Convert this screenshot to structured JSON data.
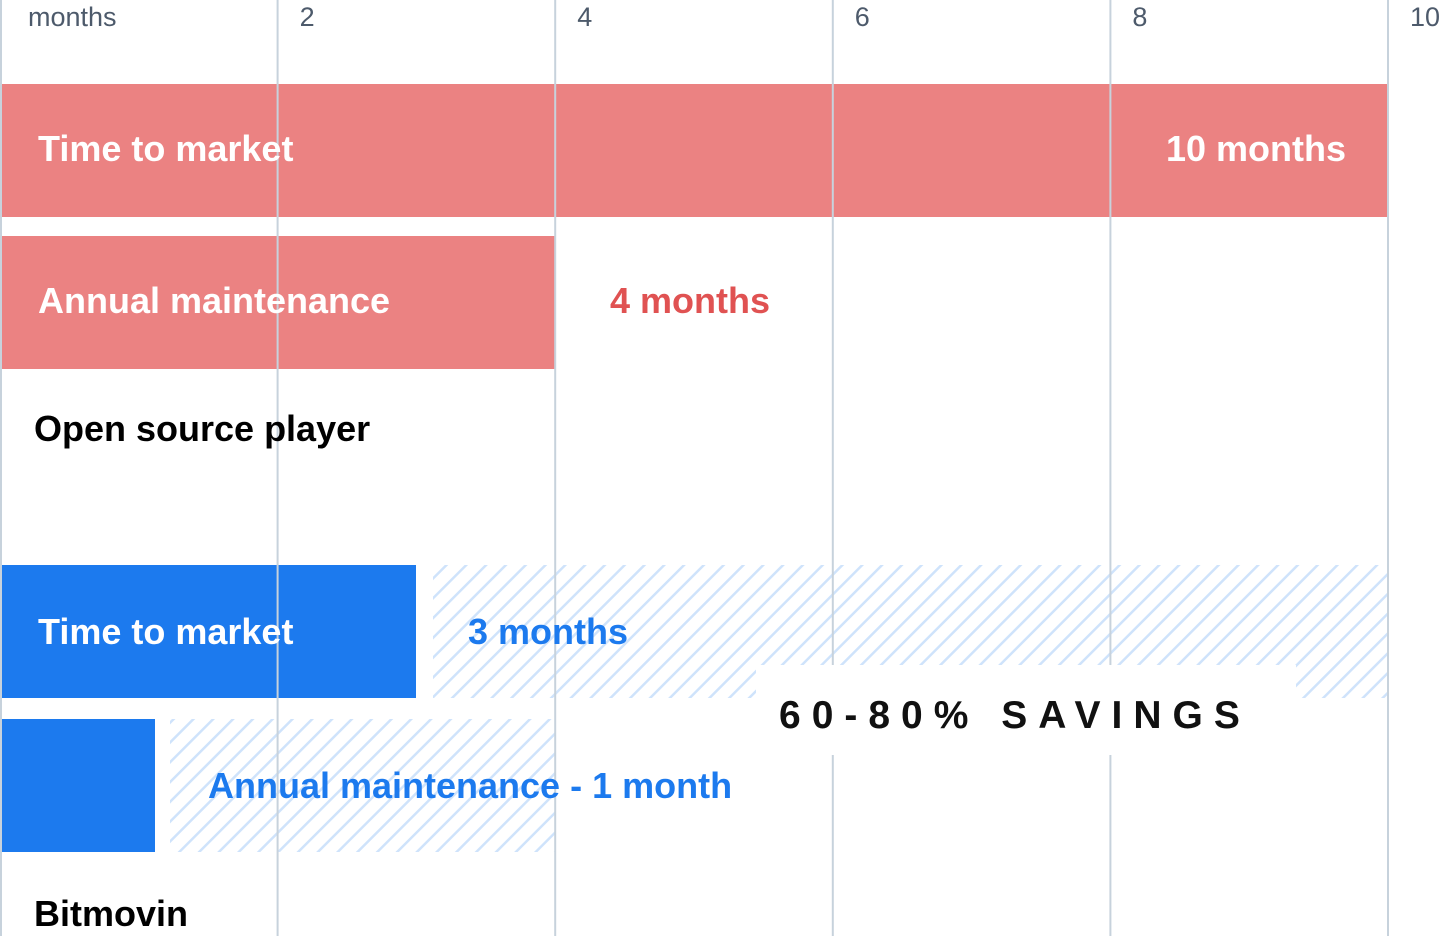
{
  "chart_data": {
    "type": "bar",
    "orientation": "horizontal",
    "xlim": [
      0,
      10
    ],
    "x_ticks": [
      {
        "value": 0,
        "label": "months"
      },
      {
        "value": 2,
        "label": "2"
      },
      {
        "value": 4,
        "label": "4"
      },
      {
        "value": 6,
        "label": "6"
      },
      {
        "value": 8,
        "label": "8"
      },
      {
        "value": 10,
        "label": "10"
      }
    ],
    "grid": true,
    "groups": [
      {
        "name": "Open source player",
        "bars": [
          {
            "label": "Time to market",
            "value": 10,
            "value_label": "10 months"
          },
          {
            "label": "Annual maintenance",
            "value": 4,
            "value_label": "4 months"
          }
        ]
      },
      {
        "name": "Bitmovin",
        "bars": [
          {
            "label": "Time to market",
            "value": 3,
            "value_label": "3 months",
            "saved_until": 10
          },
          {
            "label": "Annual maintenance - 1 month",
            "value": 1,
            "value_label": "",
            "saved_until": 4
          }
        ]
      }
    ],
    "annotation": "60-80% SAVINGS",
    "colors": {
      "open_source": "#eb8282",
      "open_source_text": "#e05252",
      "bitmovin": "#1c7aee",
      "saved_hatch": "#cfe3fb",
      "grid": "#c7d2dc",
      "tick_text": "#4d5a6b"
    }
  }
}
